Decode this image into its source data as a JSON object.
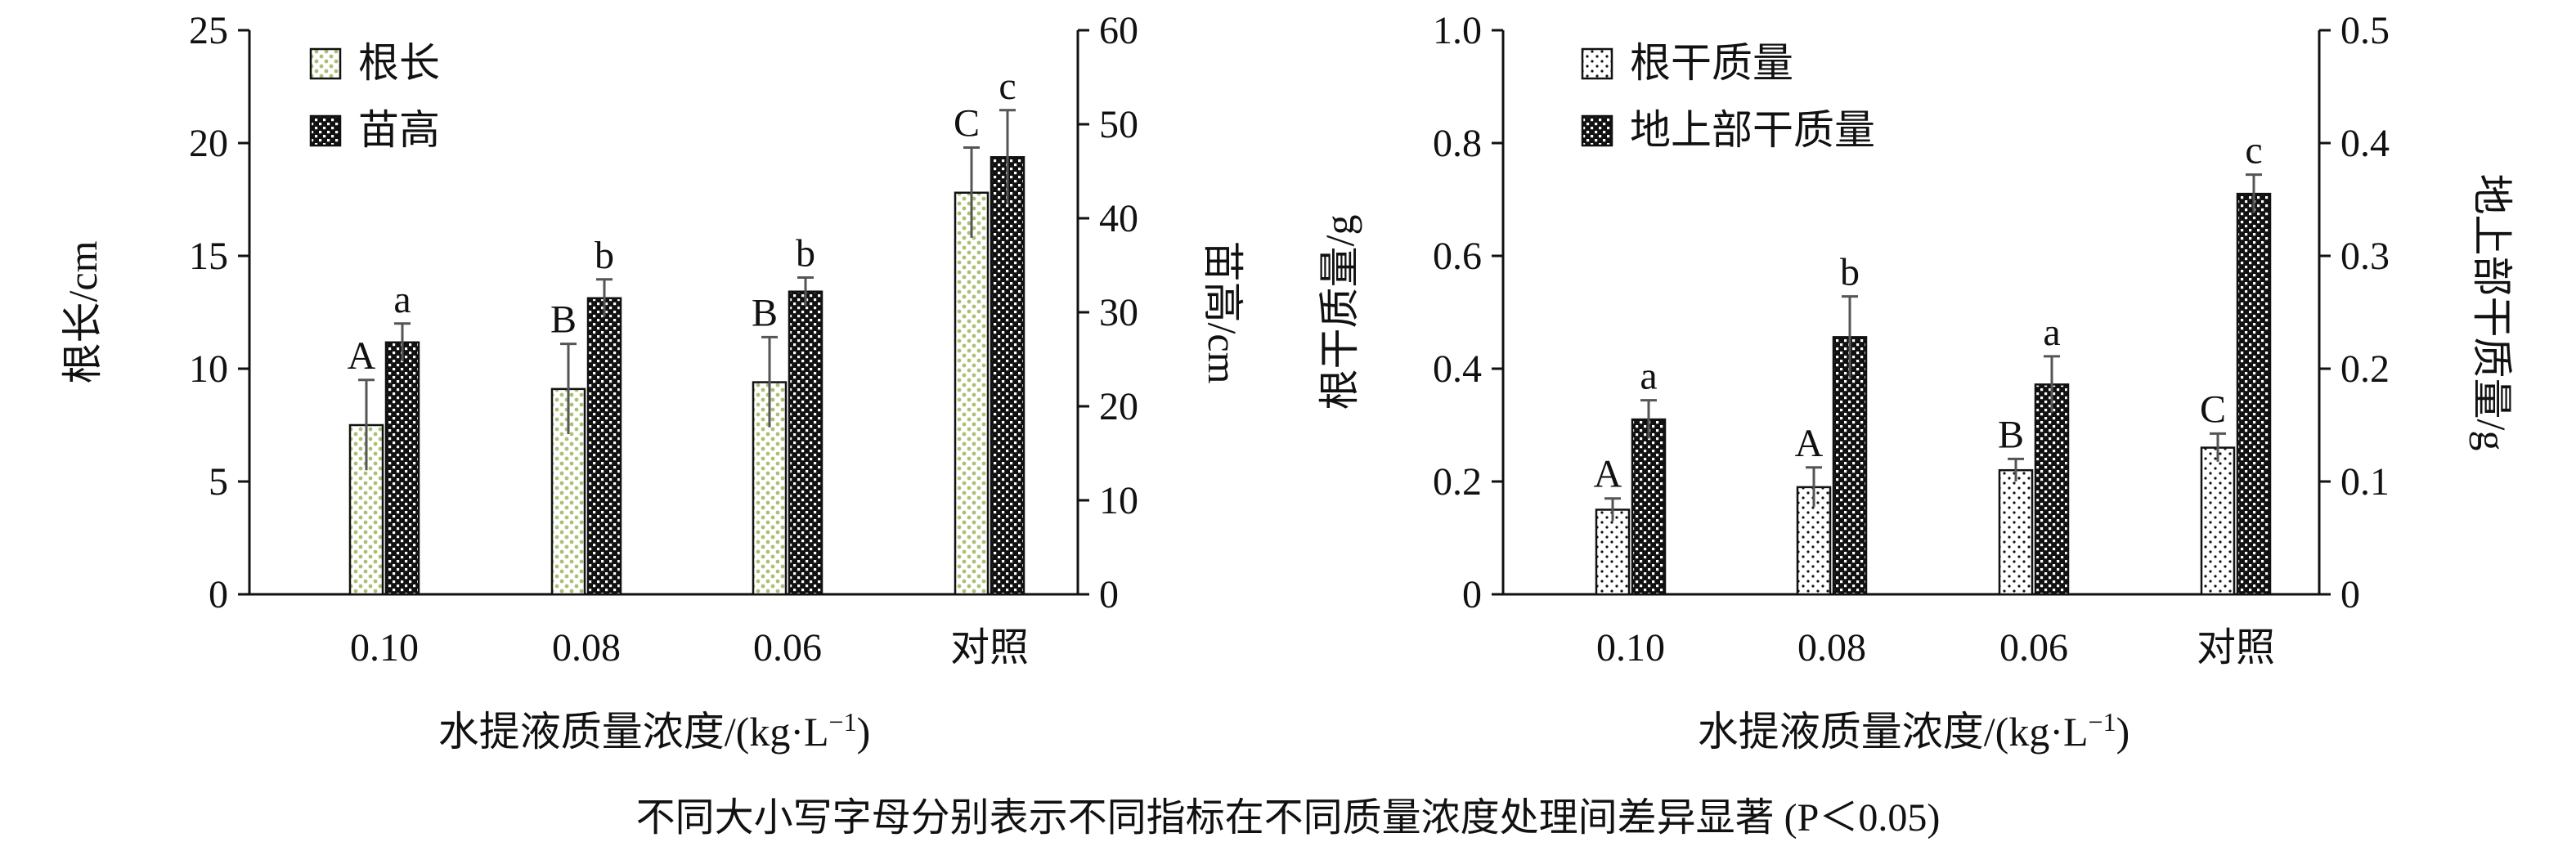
{
  "caption": "不同大小写字母分别表示不同指标在不同质量浓度处理间差异显著 (P＜0.05)",
  "colors": {
    "root_fill": "#a9c074",
    "ink": "#111111",
    "error_bar": "#555555"
  },
  "chart_data": [
    {
      "type": "bar",
      "categories": [
        "0.10",
        "0.08",
        "0.06",
        "对照"
      ],
      "xlabel": "水提液质量浓度/(kg·L",
      "xlabel_sup": "−1",
      "xlabel_tail": ")",
      "ylabel": "根长/cm",
      "ylabel_right": "苗高/cm",
      "ylim": [
        0,
        25
      ],
      "yticks": [
        "0",
        "5",
        "10",
        "15",
        "20",
        "25"
      ],
      "ylim_right": [
        0,
        60
      ],
      "yticks_right": [
        "0",
        "10",
        "20",
        "30",
        "40",
        "50",
        "60"
      ],
      "legend_position": "top-left",
      "series": [
        {
          "name": "根长",
          "axis": "left",
          "pattern": "green-dots",
          "values": [
            7.5,
            9.1,
            9.4,
            17.8
          ],
          "errors": [
            2.0,
            2.0,
            2.0,
            2.0
          ],
          "letters": [
            "A",
            "B",
            "B",
            "C"
          ]
        },
        {
          "name": "苗高",
          "axis": "right",
          "pattern": "checker",
          "values": [
            26.8,
            31.5,
            32.2,
            46.5
          ],
          "errors": [
            2.0,
            2.0,
            1.5,
            5.0
          ],
          "letters": [
            "a",
            "b",
            "b",
            "c"
          ]
        }
      ]
    },
    {
      "type": "bar",
      "categories": [
        "0.10",
        "0.08",
        "0.06",
        "对照"
      ],
      "xlabel": "水提液质量浓度/(kg·L",
      "xlabel_sup": "−1",
      "xlabel_tail": ")",
      "ylabel": "根干质量/g",
      "ylabel_right": "地上部干质量/g",
      "ylim": [
        0,
        1.0
      ],
      "yticks": [
        "0",
        "0.2",
        "0.4",
        "0.6",
        "0.8",
        "1.0"
      ],
      "ylim_right": [
        0,
        0.5
      ],
      "yticks_right": [
        "0",
        "0.1",
        "0.2",
        "0.3",
        "0.4",
        "0.5"
      ],
      "legend_position": "top-left",
      "series": [
        {
          "name": "根干质量",
          "axis": "left",
          "pattern": "black-dots",
          "values": [
            0.15,
            0.19,
            0.22,
            0.26
          ],
          "errors": [
            0.02,
            0.035,
            0.02,
            0.025
          ],
          "letters": [
            "A",
            "A",
            "B",
            "C"
          ]
        },
        {
          "name": "地上部干质量",
          "axis": "right",
          "pattern": "checker",
          "values": [
            0.155,
            0.228,
            0.186,
            0.355
          ],
          "errors": [
            0.017,
            0.036,
            0.025,
            0.017
          ],
          "letters": [
            "a",
            "b",
            "a",
            "c"
          ]
        }
      ]
    }
  ]
}
